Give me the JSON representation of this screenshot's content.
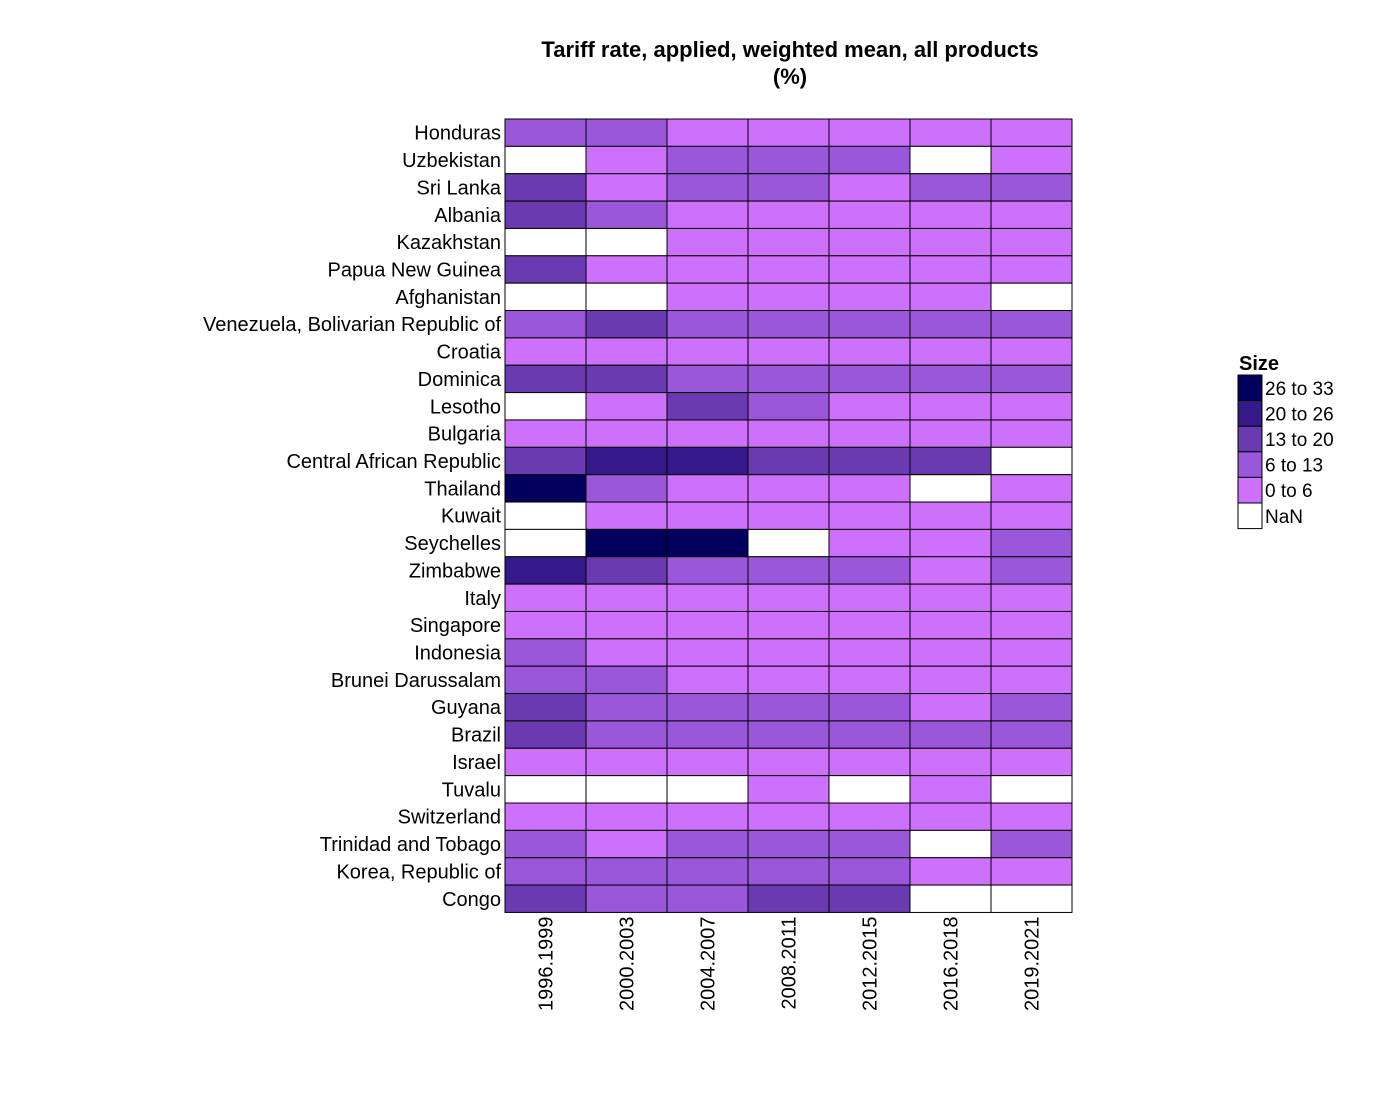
{
  "chart_data": {
    "type": "heatmap",
    "title": "Tariff rate, applied, weighted mean, all products",
    "subtitle": "(%)",
    "columns": [
      "1996.1999",
      "2000.2003",
      "2004.2007",
      "2008.2011",
      "2012.2015",
      "2016.2018",
      "2019.2021"
    ],
    "rows": [
      "Honduras",
      "Uzbekistan",
      "Sri Lanka",
      "Albania",
      "Kazakhstan",
      "Papua New Guinea",
      "Afghanistan",
      "Venezuela, Bolivarian Republic of",
      "Croatia",
      "Dominica",
      "Lesotho",
      "Bulgaria",
      "Central African Republic",
      "Thailand",
      "Kuwait",
      "Seychelles",
      "Zimbabwe",
      "Italy",
      "Singapore",
      "Indonesia",
      "Brunei Darussalam",
      "Guyana",
      "Brazil",
      "Israel",
      "Tuvalu",
      "Switzerland",
      "Trinidad and Tobago",
      "Korea, Republic of",
      "Congo"
    ],
    "bins": [
      "0 to 6",
      "6 to 13",
      "13 to 20",
      "20 to 26",
      "26 to 33",
      "NaN"
    ],
    "values": [
      [
        "6 to 13",
        "6 to 13",
        "0 to 6",
        "0 to 6",
        "0 to 6",
        "0 to 6",
        "0 to 6"
      ],
      [
        "NaN",
        "0 to 6",
        "6 to 13",
        "6 to 13",
        "6 to 13",
        "NaN",
        "0 to 6"
      ],
      [
        "13 to 20",
        "0 to 6",
        "6 to 13",
        "6 to 13",
        "0 to 6",
        "6 to 13",
        "6 to 13"
      ],
      [
        "13 to 20",
        "6 to 13",
        "0 to 6",
        "0 to 6",
        "0 to 6",
        "0 to 6",
        "0 to 6"
      ],
      [
        "NaN",
        "NaN",
        "0 to 6",
        "0 to 6",
        "0 to 6",
        "0 to 6",
        "0 to 6"
      ],
      [
        "13 to 20",
        "0 to 6",
        "0 to 6",
        "0 to 6",
        "0 to 6",
        "0 to 6",
        "0 to 6"
      ],
      [
        "NaN",
        "NaN",
        "0 to 6",
        "0 to 6",
        "0 to 6",
        "0 to 6",
        "NaN"
      ],
      [
        "6 to 13",
        "13 to 20",
        "6 to 13",
        "6 to 13",
        "6 to 13",
        "6 to 13",
        "6 to 13"
      ],
      [
        "0 to 6",
        "0 to 6",
        "0 to 6",
        "0 to 6",
        "0 to 6",
        "0 to 6",
        "0 to 6"
      ],
      [
        "13 to 20",
        "13 to 20",
        "6 to 13",
        "6 to 13",
        "6 to 13",
        "6 to 13",
        "6 to 13"
      ],
      [
        "NaN",
        "0 to 6",
        "13 to 20",
        "6 to 13",
        "0 to 6",
        "0 to 6",
        "0 to 6"
      ],
      [
        "0 to 6",
        "0 to 6",
        "0 to 6",
        "0 to 6",
        "0 to 6",
        "0 to 6",
        "0 to 6"
      ],
      [
        "13 to 20",
        "20 to 26",
        "20 to 26",
        "13 to 20",
        "13 to 20",
        "13 to 20",
        "NaN"
      ],
      [
        "26 to 33",
        "6 to 13",
        "0 to 6",
        "0 to 6",
        "0 to 6",
        "NaN",
        "0 to 6"
      ],
      [
        "NaN",
        "0 to 6",
        "0 to 6",
        "0 to 6",
        "0 to 6",
        "0 to 6",
        "0 to 6"
      ],
      [
        "NaN",
        "26 to 33",
        "26 to 33",
        "NaN",
        "0 to 6",
        "0 to 6",
        "6 to 13"
      ],
      [
        "20 to 26",
        "13 to 20",
        "6 to 13",
        "6 to 13",
        "6 to 13",
        "0 to 6",
        "6 to 13"
      ],
      [
        "0 to 6",
        "0 to 6",
        "0 to 6",
        "0 to 6",
        "0 to 6",
        "0 to 6",
        "0 to 6"
      ],
      [
        "0 to 6",
        "0 to 6",
        "0 to 6",
        "0 to 6",
        "0 to 6",
        "0 to 6",
        "0 to 6"
      ],
      [
        "6 to 13",
        "0 to 6",
        "0 to 6",
        "0 to 6",
        "0 to 6",
        "0 to 6",
        "0 to 6"
      ],
      [
        "6 to 13",
        "6 to 13",
        "0 to 6",
        "0 to 6",
        "0 to 6",
        "0 to 6",
        "0 to 6"
      ],
      [
        "13 to 20",
        "6 to 13",
        "6 to 13",
        "6 to 13",
        "6 to 13",
        "0 to 6",
        "6 to 13"
      ],
      [
        "13 to 20",
        "6 to 13",
        "6 to 13",
        "6 to 13",
        "6 to 13",
        "6 to 13",
        "6 to 13"
      ],
      [
        "0 to 6",
        "0 to 6",
        "0 to 6",
        "0 to 6",
        "0 to 6",
        "0 to 6",
        "0 to 6"
      ],
      [
        "NaN",
        "NaN",
        "NaN",
        "0 to 6",
        "NaN",
        "0 to 6",
        "NaN"
      ],
      [
        "0 to 6",
        "0 to 6",
        "0 to 6",
        "0 to 6",
        "0 to 6",
        "0 to 6",
        "0 to 6"
      ],
      [
        "6 to 13",
        "0 to 6",
        "6 to 13",
        "6 to 13",
        "6 to 13",
        "NaN",
        "6 to 13"
      ],
      [
        "6 to 13",
        "6 to 13",
        "6 to 13",
        "6 to 13",
        "6 to 13",
        "0 to 6",
        "0 to 6"
      ],
      [
        "13 to 20",
        "6 to 13",
        "6 to 13",
        "13 to 20",
        "13 to 20",
        "NaN",
        "NaN"
      ]
    ],
    "legend": {
      "title": "Size",
      "placement": "right",
      "items": [
        {
          "label": "26 to 33",
          "color": "#02005c"
        },
        {
          "label": "20 to 26",
          "color": "#35198a"
        },
        {
          "label": "13 to 20",
          "color": "#6a3ab0"
        },
        {
          "label": "6 to 13",
          "color": "#9b57d9"
        },
        {
          "label": "0 to 6",
          "color": "#cd70fc"
        },
        {
          "label": "NaN",
          "color": "#ffffff"
        }
      ]
    },
    "grid": false
  }
}
